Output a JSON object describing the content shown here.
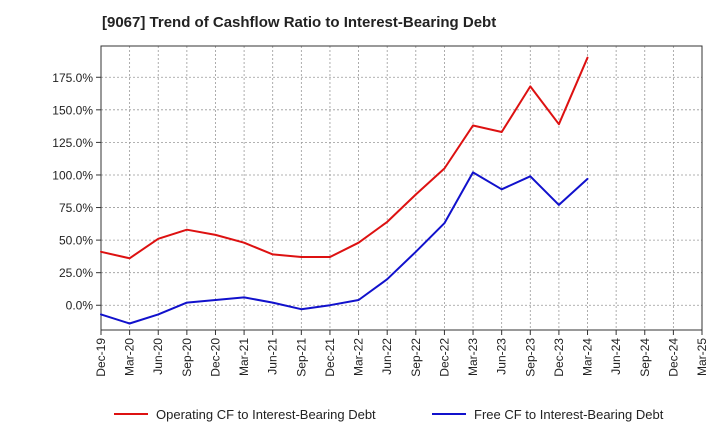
{
  "chart_data": {
    "type": "line",
    "title": "[9067]  Trend of Cashflow Ratio to Interest-Bearing Debt",
    "xlabel": "",
    "ylabel": "",
    "ylim": [
      -0.19,
      1.99
    ],
    "y_ticks": [
      {
        "value": 0.0,
        "label": "0.0%"
      },
      {
        "value": 0.25,
        "label": "25.0%"
      },
      {
        "value": 0.5,
        "label": "50.0%"
      },
      {
        "value": 0.75,
        "label": "75.0%"
      },
      {
        "value": 1.0,
        "label": "100.0%"
      },
      {
        "value": 1.25,
        "label": "125.0%"
      },
      {
        "value": 1.5,
        "label": "150.0%"
      },
      {
        "value": 1.75,
        "label": "175.0%"
      }
    ],
    "x_ticks": [
      "Dec-19",
      "Mar-20",
      "Jun-20",
      "Sep-20",
      "Dec-20",
      "Mar-21",
      "Jun-21",
      "Sep-21",
      "Dec-21",
      "Mar-22",
      "Jun-22",
      "Sep-22",
      "Dec-22",
      "Mar-23",
      "Jun-23",
      "Sep-23",
      "Dec-23",
      "Mar-24",
      "Jun-24",
      "Sep-24",
      "Dec-24",
      "Mar-25"
    ],
    "grid": true,
    "legend_position": "bottom",
    "series": [
      {
        "name": "Operating CF to Interest-Bearing Debt",
        "color": "#dd1111",
        "values": [
          0.41,
          0.36,
          0.51,
          0.58,
          0.54,
          0.48,
          0.39,
          0.37,
          0.37,
          0.48,
          0.64,
          0.85,
          1.05,
          1.38,
          1.33,
          1.68,
          1.39,
          1.9
        ]
      },
      {
        "name": "Free CF to Interest-Bearing Debt",
        "color": "#1111cc",
        "values": [
          -0.07,
          -0.14,
          -0.07,
          0.02,
          0.04,
          0.06,
          0.02,
          -0.03,
          0.0,
          0.04,
          0.2,
          0.41,
          0.63,
          1.02,
          0.89,
          0.99,
          0.77,
          0.97
        ]
      }
    ]
  }
}
